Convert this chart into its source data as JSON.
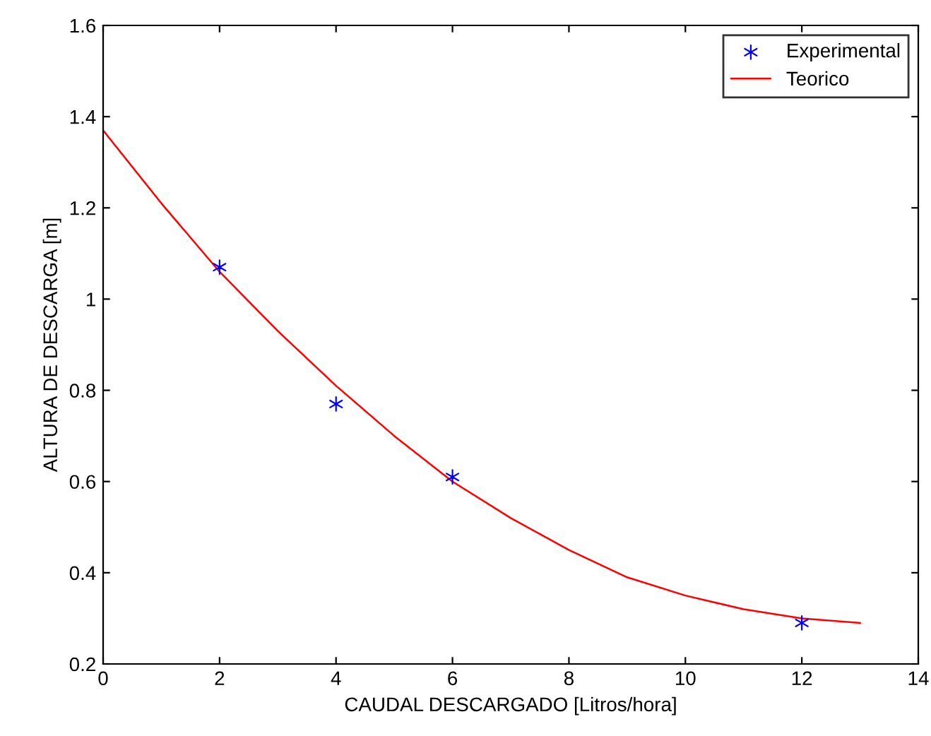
{
  "chart_data": {
    "type": "line",
    "xlabel": "CAUDAL DESCARGADO [Litros/hora]",
    "ylabel": "ALTURA DE DESCARGA [m]",
    "xlim": [
      0,
      14
    ],
    "xticks": [
      0,
      2,
      4,
      6,
      8,
      10,
      12,
      14
    ],
    "ylim": [
      0.2,
      1.6
    ],
    "yticks": [
      0.2,
      0.4,
      0.6,
      0.8,
      1,
      1.2,
      1.4,
      1.6
    ],
    "grid": false,
    "legend": "top right",
    "series": [
      {
        "name": "Experimental",
        "type": "scatter",
        "marker": "cross",
        "color": "#0000ff",
        "x": [
          2,
          4,
          6,
          12
        ],
        "values": [
          1.07,
          0.77,
          0.61,
          0.29
        ]
      },
      {
        "name": "Teorico",
        "line_style": "solid",
        "color": "#ff0000",
        "x": [
          0,
          1,
          2,
          3,
          4,
          5,
          6,
          7,
          8,
          9,
          10,
          11,
          12,
          13
        ],
        "values": [
          1.37,
          1.21,
          1.06,
          0.93,
          0.81,
          0.7,
          0.6,
          0.52,
          0.45,
          0.39,
          0.35,
          0.32,
          0.3,
          0.29
        ]
      }
    ]
  }
}
